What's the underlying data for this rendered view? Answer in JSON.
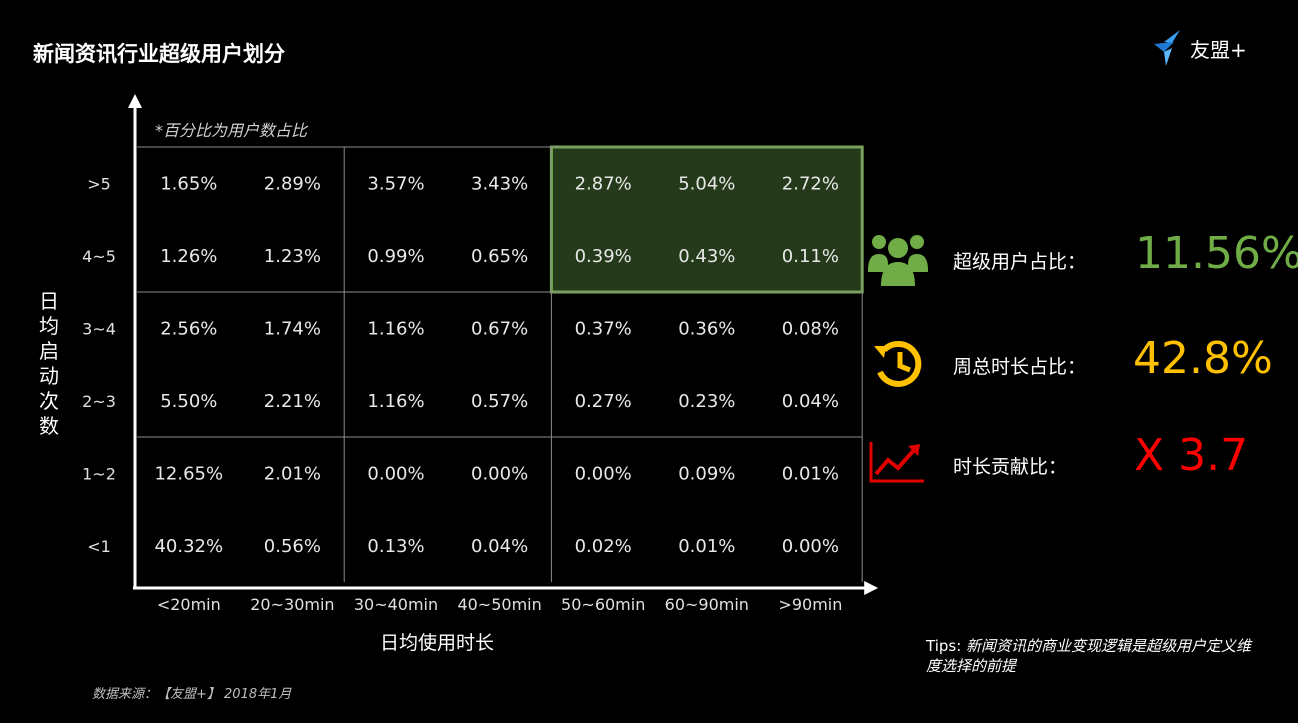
{
  "header": {
    "title": "新闻资讯行业超级用户划分",
    "logo_text": "友盟+"
  },
  "note": "*百分比为用户数占比",
  "source": "数据来源：【友盟+】 2018年1月",
  "tips": {
    "prefix": "Tips: ",
    "body": "新闻资讯的商业变现逻辑是超级用户定义维度选择的前提"
  },
  "stats": [
    {
      "icon": "users-icon",
      "label": "超级用户占比：",
      "value": "11.56%",
      "color": "#70ad47"
    },
    {
      "icon": "time-history-icon",
      "label": "周总时长占比：",
      "value": "42.8%",
      "color": "#ffc000"
    },
    {
      "icon": "trend-up-chart-icon",
      "label": "时长贡献比：",
      "value": "X 3.7",
      "color": "#ff0000"
    }
  ],
  "chart_data": {
    "type": "table",
    "xlabel": "日均使用时长",
    "ylabel": "日均启动次数",
    "columns": [
      "<20min",
      "20~30min",
      "30~40min",
      "40~50min",
      "50~60min",
      "60~90min",
      ">90min"
    ],
    "rows": [
      ">5",
      "4~5",
      "3~4",
      "2~3",
      "1~2",
      "<1"
    ],
    "values": [
      [
        "1.65%",
        "2.89%",
        "3.57%",
        "3.43%",
        "2.87%",
        "5.04%",
        "2.72%"
      ],
      [
        "1.26%",
        "1.23%",
        "0.99%",
        "0.65%",
        "0.39%",
        "0.43%",
        "0.11%"
      ],
      [
        "2.56%",
        "1.74%",
        "1.16%",
        "0.67%",
        "0.37%",
        "0.36%",
        "0.08%"
      ],
      [
        "5.50%",
        "2.21%",
        "1.16%",
        "0.57%",
        "0.27%",
        "0.23%",
        "0.04%"
      ],
      [
        "12.65%",
        "2.01%",
        "0.00%",
        "0.00%",
        "0.00%",
        "0.09%",
        "0.01%"
      ],
      [
        "40.32%",
        "0.56%",
        "0.13%",
        "0.04%",
        "0.02%",
        "0.01%",
        "0.00%"
      ]
    ],
    "highlight": {
      "rows": [
        ">5",
        "4~5"
      ],
      "columns": [
        "50~60min",
        "60~90min",
        ">90min"
      ],
      "color": "#70ad47"
    }
  }
}
